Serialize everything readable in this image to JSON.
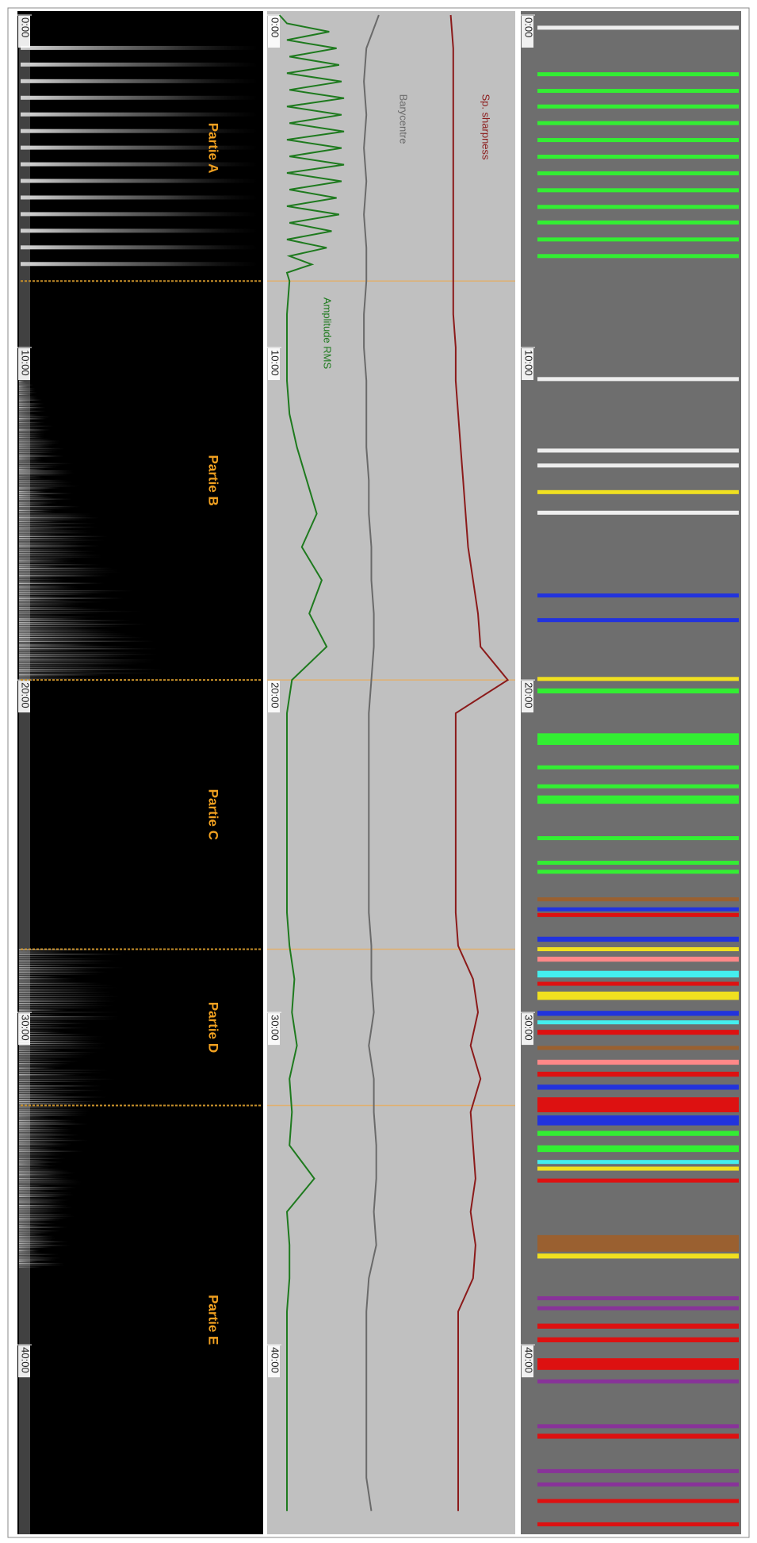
{
  "tlim": [
    0,
    45.7
  ],
  "time_ticks": [
    {
      "value": 0,
      "label": "0:00"
    },
    {
      "value": 10,
      "label": "10:00"
    },
    {
      "value": 20,
      "label": "20:00"
    },
    {
      "value": 30,
      "label": "30:00"
    },
    {
      "value": 40,
      "label": "40:00"
    }
  ],
  "markers": [
    8,
    20,
    28.1,
    32.8
  ],
  "sections": [
    "Partie A",
    "Partie B",
    "Partie C",
    "Partie D",
    "Partie E"
  ],
  "curves": {
    "xlim": [
      0,
      100
    ],
    "series": [
      {
        "name": "Sp. sharpness",
        "color": "#8b1a1a",
        "x": [
          0,
          1,
          2,
          3,
          4,
          5,
          6,
          7,
          8,
          9,
          10,
          11,
          12,
          13,
          14,
          15,
          16,
          17,
          18,
          19,
          20,
          21,
          22,
          23,
          24,
          25,
          26,
          27,
          28,
          29,
          30,
          31,
          32,
          33,
          34,
          35,
          36,
          37,
          38,
          39,
          40,
          41,
          42,
          43,
          44,
          45
        ],
        "values": [
          74,
          75,
          75,
          75,
          75,
          75,
          75,
          75,
          75,
          75,
          76,
          76,
          77,
          78,
          79,
          80,
          81,
          83,
          85,
          86,
          97,
          76,
          76,
          76,
          76,
          76,
          76,
          76,
          77,
          83,
          85,
          82,
          86,
          82,
          83,
          84,
          82,
          84,
          83,
          77,
          77,
          77,
          77,
          77,
          77,
          77
        ]
      },
      {
        "name": "Barycentre",
        "color": "#6a6a6a",
        "x": [
          0,
          1,
          2,
          3,
          4,
          5,
          6,
          7,
          8,
          9,
          10,
          11,
          12,
          13,
          14,
          15,
          16,
          17,
          18,
          19,
          20,
          21,
          22,
          23,
          24,
          25,
          26,
          27,
          28,
          29,
          30,
          31,
          32,
          33,
          34,
          35,
          36,
          37,
          38,
          39,
          40,
          41,
          42,
          43,
          44,
          45
        ],
        "values": [
          45,
          40,
          39,
          40,
          39,
          40,
          39,
          40,
          40,
          39,
          39,
          40,
          40,
          40,
          41,
          41,
          42,
          42,
          43,
          43,
          42,
          41,
          41,
          41,
          41,
          41,
          41,
          41,
          42,
          42,
          43,
          41,
          43,
          43,
          44,
          44,
          43,
          44,
          41,
          40,
          40,
          40,
          40,
          40,
          40,
          42
        ]
      },
      {
        "name": "Amplitude RMS",
        "color": "#1e7a1e",
        "x": [
          0,
          0.25,
          0.5,
          0.75,
          1,
          1.25,
          1.5,
          1.75,
          2,
          2.25,
          2.5,
          2.75,
          3,
          3.25,
          3.5,
          3.75,
          4,
          4.25,
          4.5,
          4.75,
          5,
          5.25,
          5.5,
          5.75,
          6,
          6.25,
          6.5,
          6.75,
          7,
          7.25,
          7.5,
          7.75,
          8,
          9,
          10,
          11,
          12,
          13,
          14,
          15,
          16,
          17,
          18,
          19,
          20,
          21,
          22,
          23,
          24,
          25,
          26,
          27,
          28,
          29,
          30,
          31,
          32,
          33,
          34,
          35,
          36,
          37,
          38,
          39,
          40,
          41,
          42,
          43,
          44,
          45
        ],
        "values": [
          5,
          8,
          25,
          8,
          28,
          9,
          29,
          8,
          30,
          9,
          31,
          8,
          30,
          9,
          31,
          8,
          30,
          9,
          31,
          8,
          30,
          9,
          28,
          8,
          29,
          9,
          26,
          8,
          24,
          9,
          18,
          8,
          9,
          8,
          8,
          8,
          9,
          12,
          16,
          20,
          14,
          22,
          17,
          24,
          10,
          8,
          8,
          8,
          8,
          8,
          8,
          8,
          9,
          11,
          10,
          12,
          9,
          10,
          9,
          19,
          8,
          9,
          9,
          8,
          8,
          8,
          8,
          8,
          8,
          8
        ]
      }
    ]
  },
  "stripes": [
    {
      "t": 0.38,
      "w": 0.12,
      "color": "#eeeeee"
    },
    {
      "t": 1.78,
      "w": 0.12,
      "color": "#33ee33"
    },
    {
      "t": 2.28,
      "w": 0.12,
      "color": "#33ee33"
    },
    {
      "t": 2.75,
      "w": 0.12,
      "color": "#33ee33"
    },
    {
      "t": 3.25,
      "w": 0.12,
      "color": "#33ee33"
    },
    {
      "t": 3.76,
      "w": 0.12,
      "color": "#33ee33"
    },
    {
      "t": 4.26,
      "w": 0.12,
      "color": "#33ee33"
    },
    {
      "t": 4.76,
      "w": 0.12,
      "color": "#33ee33"
    },
    {
      "t": 5.27,
      "w": 0.12,
      "color": "#33ee33"
    },
    {
      "t": 5.77,
      "w": 0.12,
      "color": "#33ee33"
    },
    {
      "t": 6.24,
      "w": 0.12,
      "color": "#33ee33"
    },
    {
      "t": 6.75,
      "w": 0.12,
      "color": "#33ee33"
    },
    {
      "t": 7.25,
      "w": 0.12,
      "color": "#33ee33"
    },
    {
      "t": 10.95,
      "w": 0.12,
      "color": "#eeeeee"
    },
    {
      "t": 13.1,
      "w": 0.12,
      "color": "#eeeeee"
    },
    {
      "t": 13.55,
      "w": 0.12,
      "color": "#eeeeee"
    },
    {
      "t": 14.35,
      "w": 0.12,
      "color": "#f0e020"
    },
    {
      "t": 14.97,
      "w": 0.12,
      "color": "#eeeeee"
    },
    {
      "t": 17.46,
      "w": 0.12,
      "color": "#2233dd"
    },
    {
      "t": 18.2,
      "w": 0.12,
      "color": "#2233dd"
    },
    {
      "t": 19.97,
      "w": 0.12,
      "color": "#f0e020"
    },
    {
      "t": 20.33,
      "w": 0.15,
      "color": "#33ee33"
    },
    {
      "t": 21.78,
      "w": 0.35,
      "color": "#33ee33"
    },
    {
      "t": 22.63,
      "w": 0.12,
      "color": "#33ee33"
    },
    {
      "t": 23.2,
      "w": 0.12,
      "color": "#33ee33"
    },
    {
      "t": 23.6,
      "w": 0.25,
      "color": "#33ee33"
    },
    {
      "t": 24.76,
      "w": 0.12,
      "color": "#33ee33"
    },
    {
      "t": 25.5,
      "w": 0.12,
      "color": "#33ee33"
    },
    {
      "t": 25.77,
      "w": 0.12,
      "color": "#33ee33"
    },
    {
      "t": 26.6,
      "w": 0.12,
      "color": "#9a6030"
    },
    {
      "t": 26.9,
      "w": 0.12,
      "color": "#2233dd"
    },
    {
      "t": 27.07,
      "w": 0.12,
      "color": "#dd1111"
    },
    {
      "t": 27.8,
      "w": 0.15,
      "color": "#2233dd"
    },
    {
      "t": 28.1,
      "w": 0.12,
      "color": "#f0e020"
    },
    {
      "t": 28.4,
      "w": 0.15,
      "color": "#ff8888"
    },
    {
      "t": 28.85,
      "w": 0.2,
      "color": "#44eeee"
    },
    {
      "t": 29.14,
      "w": 0.12,
      "color": "#dd1111"
    },
    {
      "t": 29.5,
      "w": 0.25,
      "color": "#f0e020"
    },
    {
      "t": 30.03,
      "w": 0.15,
      "color": "#2233dd"
    },
    {
      "t": 30.3,
      "w": 0.12,
      "color": "#44eeee"
    },
    {
      "t": 30.6,
      "w": 0.15,
      "color": "#dd1111"
    },
    {
      "t": 31.07,
      "w": 0.12,
      "color": "#9a6030"
    },
    {
      "t": 31.5,
      "w": 0.15,
      "color": "#ff8888"
    },
    {
      "t": 31.86,
      "w": 0.15,
      "color": "#dd1111"
    },
    {
      "t": 32.25,
      "w": 0.15,
      "color": "#2233dd"
    },
    {
      "t": 32.78,
      "w": 0.45,
      "color": "#dd1111"
    },
    {
      "t": 33.25,
      "w": 0.3,
      "color": "#2233dd"
    },
    {
      "t": 33.64,
      "w": 0.15,
      "color": "#33ee33"
    },
    {
      "t": 34.1,
      "w": 0.2,
      "color": "#33ee33"
    },
    {
      "t": 34.5,
      "w": 0.12,
      "color": "#44eeee"
    },
    {
      "t": 34.7,
      "w": 0.12,
      "color": "#f0e020"
    },
    {
      "t": 35.06,
      "w": 0.12,
      "color": "#dd1111"
    },
    {
      "t": 36.95,
      "w": 0.5,
      "color": "#9a6030"
    },
    {
      "t": 37.33,
      "w": 0.15,
      "color": "#f0e020"
    },
    {
      "t": 38.6,
      "w": 0.12,
      "color": "#883399"
    },
    {
      "t": 38.9,
      "w": 0.12,
      "color": "#883399"
    },
    {
      "t": 39.44,
      "w": 0.15,
      "color": "#dd1111"
    },
    {
      "t": 39.85,
      "w": 0.15,
      "color": "#dd1111"
    },
    {
      "t": 40.58,
      "w": 0.35,
      "color": "#dd1111"
    },
    {
      "t": 41.1,
      "w": 0.12,
      "color": "#883399"
    },
    {
      "t": 42.45,
      "w": 0.12,
      "color": "#883399"
    },
    {
      "t": 42.75,
      "w": 0.15,
      "color": "#dd1111"
    },
    {
      "t": 43.8,
      "w": 0.12,
      "color": "#883399"
    },
    {
      "t": 44.2,
      "w": 0.12,
      "color": "#883399"
    },
    {
      "t": 44.7,
      "w": 0.12,
      "color": "#dd1111"
    },
    {
      "t": 45.4,
      "w": 0.12,
      "color": "#dd1111"
    }
  ]
}
